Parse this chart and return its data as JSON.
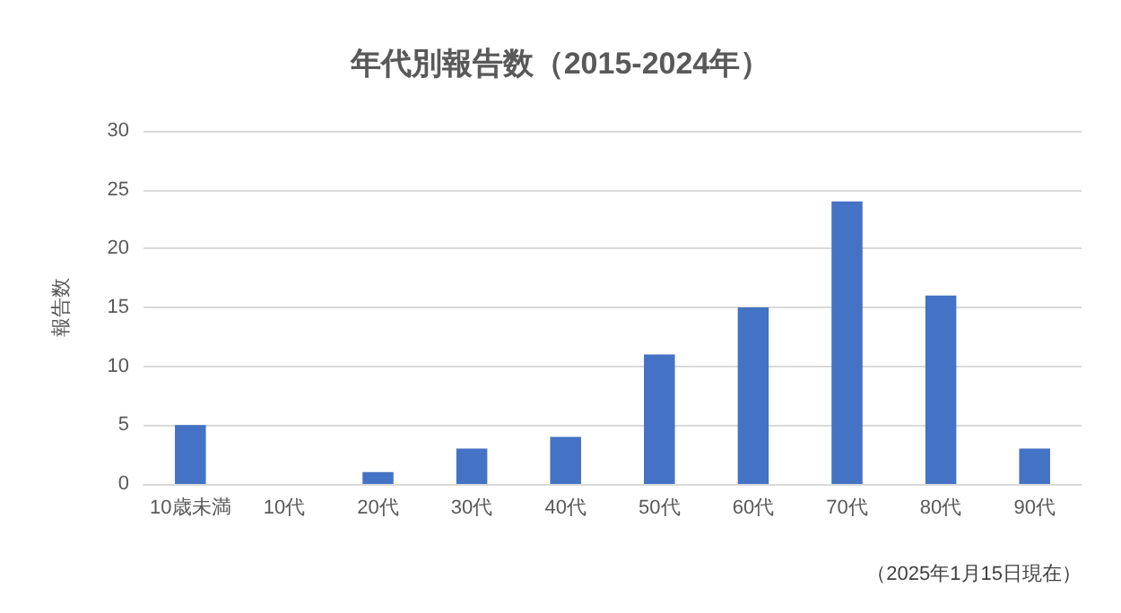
{
  "chart_data": {
    "type": "bar",
    "title": "年代別報告数（2015-2024年）",
    "ylabel": "報告数",
    "categories": [
      "10歳未満",
      "10代",
      "20代",
      "30代",
      "40代",
      "50代",
      "60代",
      "70代",
      "80代",
      "90代"
    ],
    "values": [
      5,
      0,
      1,
      3,
      4,
      11,
      15,
      24,
      16,
      3
    ],
    "color": "#4472c4",
    "ylim": [
      0,
      30
    ],
    "yticks": [
      0,
      5,
      10,
      15,
      20,
      25,
      30
    ],
    "grid": "y",
    "annotations": [
      "（2025年1月15日現在）"
    ]
  }
}
